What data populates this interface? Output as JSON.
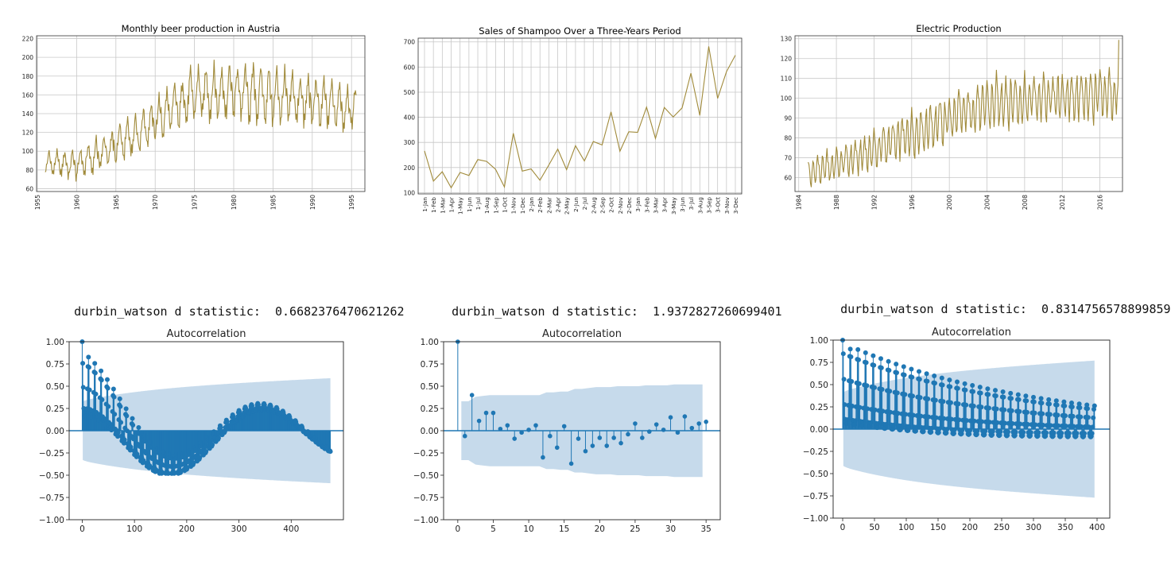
{
  "colors": {
    "line": "#a08a3a",
    "stem": "#1f77b4",
    "band": "#c6daeb",
    "grid": "#c8c8c8",
    "axis": "#333333"
  },
  "dw": [
    {
      "label": "durbin_watson d statistic:",
      "value": "0.6682376470621262"
    },
    {
      "label": "durbin_watson d statistic:",
      "value": "1.9372827260699401"
    },
    {
      "label": "durbin_watson d statistic:",
      "value": "0.8314756578899859"
    }
  ],
  "chart_data": [
    {
      "type": "line",
      "title": "Monthly beer production in Austria",
      "x_range": [
        1954.9,
        1996.7
      ],
      "ylim": [
        57,
        223
      ],
      "yticks": [
        60,
        80,
        100,
        120,
        140,
        160,
        180,
        200,
        220
      ],
      "xticks": [
        1955,
        1960,
        1965,
        1970,
        1975,
        1980,
        1985,
        1990,
        1995
      ],
      "grid": true,
      "x_start": 1956.0,
      "x_step": 0.0833333,
      "trend": [
        [
          1956,
          87
        ],
        [
          1960,
          85
        ],
        [
          1965,
          105
        ],
        [
          1970,
          132
        ],
        [
          1975,
          160
        ],
        [
          1980,
          163
        ],
        [
          1985,
          158
        ],
        [
          1990,
          152
        ],
        [
          1995,
          145
        ]
      ],
      "amplitude": [
        [
          1956,
          12
        ],
        [
          1965,
          20
        ],
        [
          1975,
          28
        ],
        [
          1985,
          30
        ],
        [
          1995,
          24
        ]
      ],
      "n": 476
    },
    {
      "type": "line",
      "title": "Sales of Shampoo Over a Three-Years Period",
      "categories": [
        "1-Jan",
        "1-Feb",
        "1-Mar",
        "1-Apr",
        "1-May",
        "1-Jun",
        "1-Jul",
        "1-Aug",
        "1-Sep",
        "1-Oct",
        "1-Nov",
        "1-Dec",
        "2-Jan",
        "2-Feb",
        "2-Mar",
        "2-Apr",
        "2-May",
        "2-Jun",
        "2-Jul",
        "2-Aug",
        "2-Sep",
        "2-Oct",
        "2-Nov",
        "2-Dec",
        "3-Jan",
        "3-Feb",
        "3-Mar",
        "3-Apr",
        "3-May",
        "3-Jun",
        "3-Jul",
        "3-Aug",
        "3-Sep",
        "3-Oct",
        "3-Nov",
        "3-Dec"
      ],
      "values": [
        266.0,
        145.9,
        183.1,
        119.3,
        180.3,
        168.5,
        231.8,
        224.5,
        192.8,
        122.9,
        336.5,
        185.9,
        194.3,
        149.5,
        210.1,
        273.3,
        191.4,
        287.0,
        226.0,
        303.6,
        289.9,
        421.6,
        264.5,
        342.3,
        339.7,
        440.4,
        315.9,
        439.3,
        401.3,
        437.4,
        575.5,
        407.6,
        682.0,
        475.3,
        581.3,
        646.9
      ],
      "ylim": [
        95,
        715
      ],
      "yticks": [
        100,
        200,
        300,
        400,
        500,
        600,
        700
      ],
      "grid": true
    },
    {
      "type": "line",
      "title": "Electric Production",
      "x_range": [
        1983.6,
        2018.4
      ],
      "ylim": [
        53,
        131.5
      ],
      "yticks": [
        60,
        70,
        80,
        90,
        100,
        110,
        120,
        130
      ],
      "xticks": [
        1984,
        1988,
        1992,
        1996,
        2000,
        2004,
        2008,
        2012,
        2016
      ],
      "grid": true,
      "x_start": 1985.0,
      "x_step": 0.0833333,
      "trend": [
        [
          1985,
          62
        ],
        [
          1990,
          70
        ],
        [
          1995,
          80
        ],
        [
          2000,
          90
        ],
        [
          2005,
          98
        ],
        [
          2010,
          100
        ],
        [
          2015,
          101
        ],
        [
          2018,
          102
        ]
      ],
      "amplitude": [
        [
          1985,
          7
        ],
        [
          1995,
          11
        ],
        [
          2005,
          13
        ],
        [
          2018,
          13
        ]
      ],
      "end_value": 129.4,
      "n": 397
    },
    {
      "type": "stem",
      "title": "Autocorrelation",
      "xlim": [
        -25,
        500
      ],
      "xticks": [
        0,
        100,
        200,
        300,
        400
      ],
      "ylim": [
        -1.0,
        1.0
      ],
      "yticks": [
        "1.00",
        "0.75",
        "0.50",
        "0.25",
        "0.00",
        "−0.25",
        "−0.50",
        "−0.75",
        "−1.00"
      ],
      "nlags": 475,
      "band": {
        "start": 0.32,
        "end": 0.59,
        "lag_end": 475
      },
      "series_hint": "seasonal monthly decay"
    },
    {
      "type": "stem",
      "title": "Autocorrelation",
      "xlim": [
        -2,
        37
      ],
      "xticks": [
        0,
        5,
        10,
        15,
        20,
        25,
        30,
        35
      ],
      "ylim": [
        -1.0,
        1.0
      ],
      "yticks": [
        "1.00",
        "0.75",
        "0.50",
        "0.25",
        "0.00",
        "−0.25",
        "−0.50",
        "−0.75",
        "−1.00"
      ],
      "lags": [
        0,
        1,
        2,
        3,
        4,
        5,
        6,
        7,
        8,
        9,
        10,
        11,
        12,
        13,
        14,
        15,
        16,
        17,
        18,
        19,
        20,
        21,
        22,
        23,
        24,
        25,
        26,
        27,
        28,
        29,
        30,
        31,
        32,
        33,
        34,
        35
      ],
      "values": [
        1.0,
        -0.06,
        0.4,
        0.11,
        0.2,
        0.2,
        0.02,
        0.06,
        -0.09,
        -0.02,
        0.01,
        0.06,
        -0.3,
        -0.06,
        -0.19,
        0.05,
        -0.37,
        -0.09,
        -0.23,
        -0.17,
        -0.08,
        -0.17,
        -0.08,
        -0.14,
        -0.04,
        0.08,
        -0.08,
        -0.01,
        0.07,
        0.01,
        0.15,
        -0.02,
        0.16,
        0.03,
        0.08,
        0.1
      ],
      "band_upper": [
        0.0,
        0.33,
        0.33,
        0.38,
        0.39,
        0.4,
        0.4,
        0.4,
        0.4,
        0.4,
        0.4,
        0.4,
        0.4,
        0.43,
        0.43,
        0.44,
        0.44,
        0.47,
        0.47,
        0.48,
        0.49,
        0.49,
        0.49,
        0.5,
        0.5,
        0.5,
        0.5,
        0.51,
        0.51,
        0.51,
        0.51,
        0.52,
        0.52,
        0.52,
        0.52,
        0.52
      ]
    },
    {
      "type": "stem",
      "title": "Autocorrelation",
      "xlim": [
        -15,
        420
      ],
      "xticks": [
        0,
        50,
        100,
        150,
        200,
        250,
        300,
        350,
        400
      ],
      "ylim": [
        -1.0,
        1.0
      ],
      "yticks": [
        "1.00",
        "0.75",
        "0.50",
        "0.25",
        "0.00",
        "−0.25",
        "−0.50",
        "−0.75",
        "−1.00"
      ],
      "nlags": 396,
      "band": {
        "start": 0.4,
        "end": 0.77,
        "lag_end": 396
      },
      "series_hint": "trend plus 6-month seasonal"
    }
  ]
}
